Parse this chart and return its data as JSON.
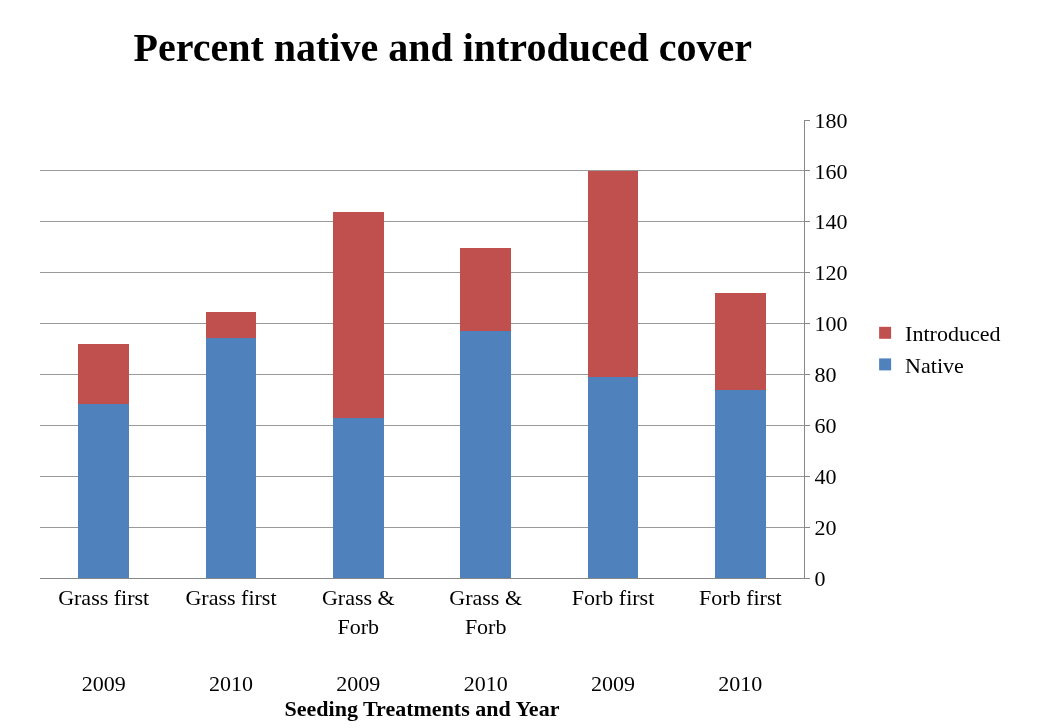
{
  "chart_data": {
    "type": "bar",
    "title": "Percent native and introduced cover",
    "xlabel": "Seeding Treatments and Year",
    "categories": [
      "Grass first\n2009",
      "Grass first\n2010",
      "Grass &\nForb\n2009",
      "Grass &\nForb\n2010",
      "Forb first\n2009",
      "Forb first\n2010"
    ],
    "series": [
      {
        "name": "Native",
        "color": "#4f81bd",
        "values": [
          68.5,
          94.4,
          62.9,
          97.1,
          79.1,
          73.9
        ]
      },
      {
        "name": "Introduced",
        "color": "#c0504d",
        "values": [
          23.6,
          10.3,
          80.9,
          32.4,
          81.0,
          38.1
        ]
      }
    ],
    "stacked": true,
    "ylim": [
      0,
      180
    ],
    "yticks": [
      0,
      20,
      40,
      60,
      80,
      100,
      120,
      140,
      160,
      180
    ],
    "grid": "y",
    "legend": "right"
  }
}
